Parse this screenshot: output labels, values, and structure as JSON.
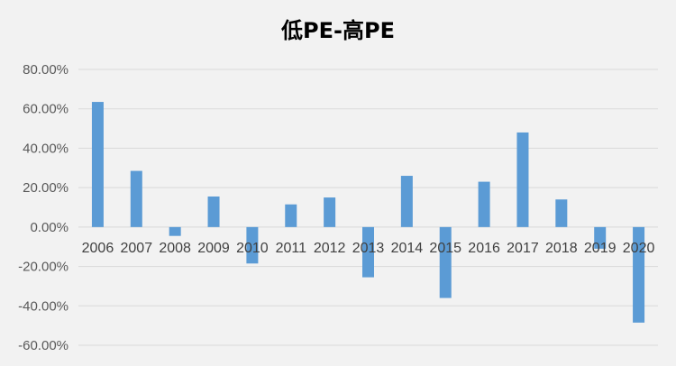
{
  "chart_data": {
    "type": "bar",
    "title": "低PE-高PE",
    "xlabel": "",
    "ylabel": "",
    "categories": [
      "2006",
      "2007",
      "2008",
      "2009",
      "2010",
      "2011",
      "2012",
      "2013",
      "2014",
      "2015",
      "2016",
      "2017",
      "2018",
      "2019",
      "2020"
    ],
    "values": [
      63.5,
      28.5,
      -4.5,
      15.5,
      -18.5,
      11.5,
      15.0,
      -25.5,
      26.0,
      -36.0,
      23.0,
      48.0,
      14.0,
      -11.0,
      -48.5
    ],
    "ylim": [
      -60,
      80
    ],
    "yticks": [
      "80.00%",
      "60.00%",
      "40.00%",
      "20.00%",
      "0.00%",
      "-20.00%",
      "-40.00%",
      "-60.00%"
    ],
    "y_tick_values": [
      80,
      60,
      40,
      20,
      0,
      -20,
      -40,
      -60
    ],
    "grid": true,
    "legend": "none",
    "bar_color": "#5b9bd5",
    "grid_color": "#d9d9d9"
  }
}
